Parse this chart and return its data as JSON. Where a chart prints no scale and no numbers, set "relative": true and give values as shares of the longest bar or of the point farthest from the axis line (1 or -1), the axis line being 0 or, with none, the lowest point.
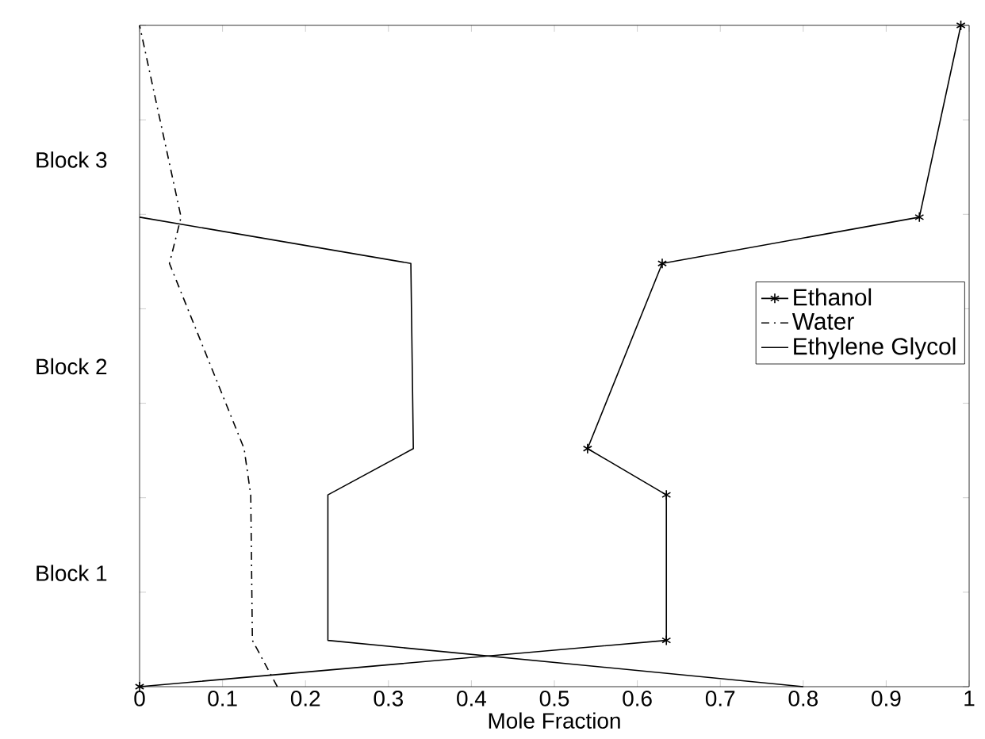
{
  "chart_data": {
    "type": "line",
    "xlabel": "Mole Fraction",
    "relative": true,
    "xlim": [
      0,
      1
    ],
    "xticks": [
      0,
      0.1,
      0.2,
      0.3,
      0.4,
      0.5,
      0.6,
      0.7,
      0.8,
      0.9,
      1
    ],
    "annotations": [
      "Block 1",
      "Block 2",
      "Block 3"
    ],
    "legend": "right",
    "grid": false,
    "series": [
      {
        "name": "Ethanol",
        "color": "#000000",
        "marker": "cross",
        "line_style": "solid",
        "x": [
          0,
          0.635,
          0.635,
          0.54,
          0.63,
          0.94,
          0.99
        ],
        "values": [
          0,
          0.07,
          0.29,
          0.36,
          0.64,
          0.71,
          1
        ]
      },
      {
        "name": "Water",
        "color": "#000000",
        "marker": "none",
        "line_style": "dashed",
        "x": [
          0.166,
          0.136,
          0.134,
          0.126,
          0.036,
          0.05,
          0
        ],
        "values": [
          0,
          0.07,
          0.29,
          0.36,
          0.64,
          0.71,
          1
        ]
      },
      {
        "name": "Ethylene Glycol",
        "color": "#000000",
        "marker": "none",
        "line_style": "solid",
        "x": [
          0.8,
          0.227,
          0.227,
          0.33,
          0.327,
          0
        ],
        "values": [
          0,
          0.07,
          0.29,
          0.36,
          0.64,
          0.71
        ]
      }
    ]
  }
}
